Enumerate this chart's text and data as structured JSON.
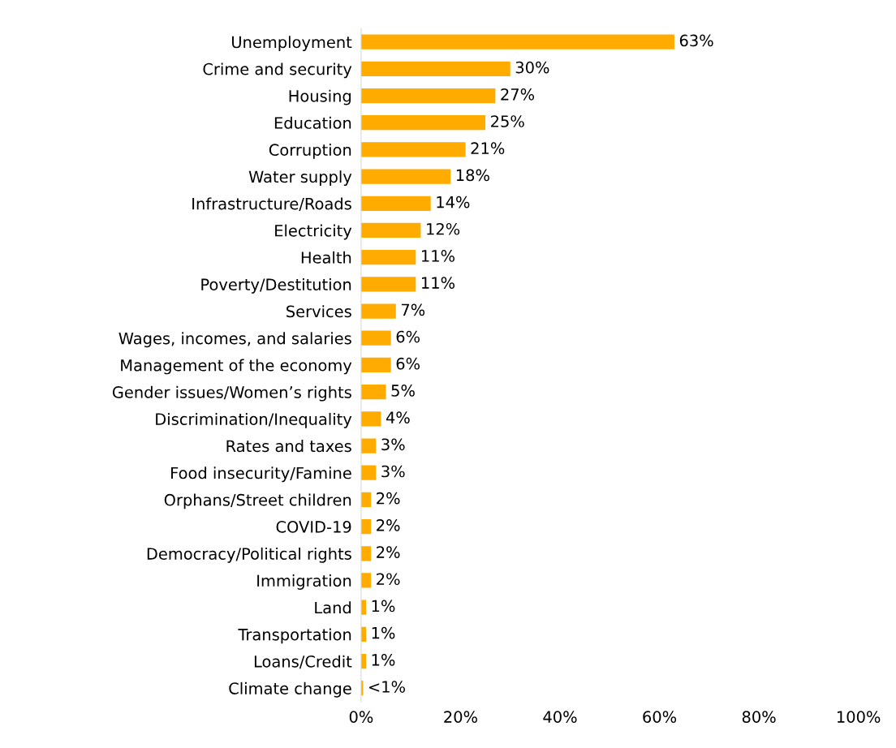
{
  "chart_data": {
    "type": "bar",
    "orientation": "horizontal",
    "categories": [
      "Unemployment",
      "Crime and security",
      "Housing",
      "Education",
      "Corruption",
      "Water supply",
      "Infrastructure/Roads",
      "Electricity",
      "Health",
      "Poverty/Destitution",
      "Services",
      "Wages, incomes, and salaries",
      "Management of the economy",
      "Gender issues/Women’s rights",
      "Discrimination/Inequality",
      "Rates and taxes",
      "Food insecurity/Famine",
      "Orphans/Street children",
      "COVID-19",
      "Democracy/Political rights",
      "Immigration",
      "Land",
      "Transportation",
      "Loans/Credit",
      "Climate change"
    ],
    "values": [
      63,
      30,
      27,
      25,
      21,
      18,
      14,
      12,
      11,
      11,
      7,
      6,
      6,
      5,
      4,
      3,
      3,
      2,
      2,
      2,
      2,
      1,
      1,
      1,
      0.4
    ],
    "value_labels": [
      "63%",
      "30%",
      "27%",
      "25%",
      "21%",
      "18%",
      "14%",
      "12%",
      "11%",
      "11%",
      "7%",
      "6%",
      "6%",
      "5%",
      "4%",
      "3%",
      "3%",
      "2%",
      "2%",
      "2%",
      "2%",
      "1%",
      "1%",
      "1%",
      "<1%"
    ],
    "color": "#ffab00",
    "xlim": [
      0,
      100
    ],
    "xticks": [
      {
        "value": 0,
        "label": "0%"
      },
      {
        "value": 20,
        "label": "20%"
      },
      {
        "value": 40,
        "label": "40%"
      },
      {
        "value": 60,
        "label": "60%"
      },
      {
        "value": 80,
        "label": "80%"
      },
      {
        "value": 100,
        "label": "100%"
      }
    ],
    "grid": false
  }
}
